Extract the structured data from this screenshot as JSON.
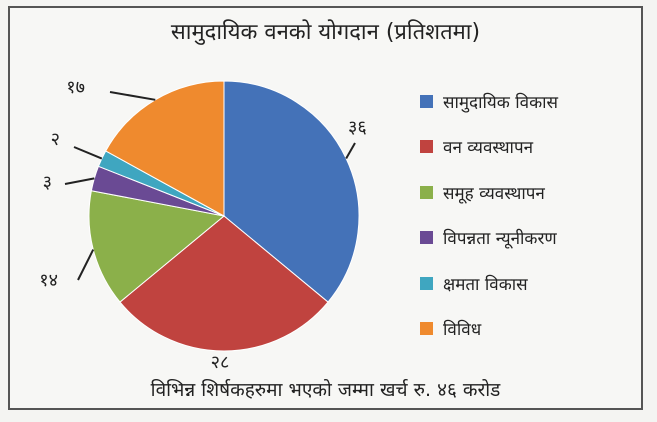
{
  "chart_data": {
    "type": "pie",
    "title": "सामुदायिक वनको योगदान (प्रतिशतमा)",
    "caption": "विभिन्न शिर्षकहरुमा भएको जम्मा खर्च रु. ४६ करोड",
    "legend_position": "right",
    "slices": [
      {
        "name": "सामुदायिक विकास",
        "value": 36,
        "label": "३६",
        "color": "#4472b8"
      },
      {
        "name": "वन व्यवस्थापन",
        "value": 28,
        "label": "२८",
        "color": "#c0433f"
      },
      {
        "name": "समूह व्यवस्थापन",
        "value": 14,
        "label": "१४",
        "color": "#8bb04a"
      },
      {
        "name": "विपन्नता न्यूनीकरण",
        "value": 3,
        "label": "३",
        "color": "#6a4a94"
      },
      {
        "name": "क्षमता विकास",
        "value": 2,
        "label": "२",
        "color": "#3fa6c0"
      },
      {
        "name": "विविध",
        "value": 17,
        "label": "१७",
        "color": "#ef8a2e"
      }
    ]
  }
}
